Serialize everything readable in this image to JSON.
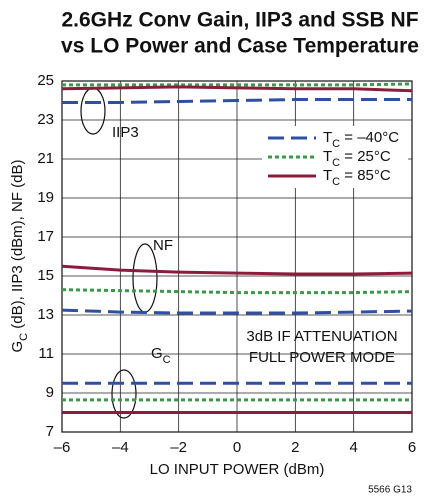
{
  "chart_data": {
    "type": "line",
    "title": [
      "2.6GHz Conv Gain, IIP3 and SSB NF",
      "vs LO Power and Case Temperature"
    ],
    "x_label": "LO INPUT POWER (dBm)",
    "y_label": "GC (dB), IIP3 (dBm), NF (dB)",
    "x": [
      -6,
      -4,
      -2,
      0,
      2,
      4,
      6
    ],
    "series": [
      {
        "name": "TC = –40°C",
        "color": "#2f4fa3",
        "style": "dashed",
        "iip3": [
          23.9,
          23.9,
          23.95,
          24.0,
          24.05,
          24.05,
          24.05
        ],
        "nf": [
          13.25,
          13.15,
          13.1,
          13.1,
          13.1,
          13.15,
          13.2
        ],
        "gc": [
          9.5,
          9.5,
          9.5,
          9.5,
          9.5,
          9.5,
          9.5
        ]
      },
      {
        "name": "TC = 25°C",
        "color": "#3a9a4a",
        "style": "dotted",
        "iip3": [
          24.8,
          24.8,
          24.8,
          24.8,
          24.8,
          24.8,
          24.85
        ],
        "nf": [
          14.3,
          14.25,
          14.2,
          14.15,
          14.15,
          14.15,
          14.2
        ],
        "gc": [
          8.65,
          8.65,
          8.65,
          8.65,
          8.65,
          8.65,
          8.65
        ]
      },
      {
        "name": "TC = 85°C",
        "color": "#8c1c3c",
        "style": "solid",
        "iip3": [
          24.6,
          24.65,
          24.7,
          24.65,
          24.6,
          24.6,
          24.5
        ],
        "nf": [
          15.5,
          15.3,
          15.2,
          15.15,
          15.1,
          15.1,
          15.15
        ],
        "gc": [
          8.0,
          8.0,
          8.0,
          8.0,
          8.0,
          8.0,
          8.0
        ]
      }
    ],
    "xlim": [
      -6,
      6
    ],
    "xticks": [
      {
        "value": -6,
        "label": "–6"
      },
      {
        "value": -4,
        "label": "–4"
      },
      {
        "value": -2,
        "label": "–2"
      },
      0,
      2,
      4,
      6
    ],
    "ylim": [
      7,
      25
    ],
    "yticks": [
      7,
      9,
      11,
      13,
      15,
      17,
      19,
      21,
      23,
      25
    ],
    "grid": true,
    "annotations": [
      "IIP3",
      "NF",
      "GC",
      "3dB IF ATTENUATION",
      "FULL POWER MODE",
      "5566 G13"
    ]
  }
}
